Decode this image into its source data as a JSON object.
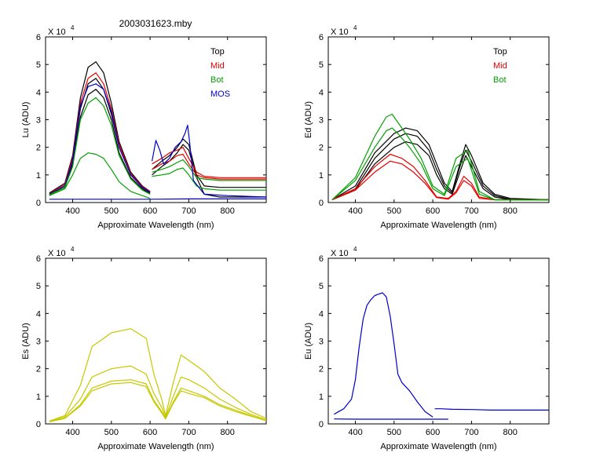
{
  "figure_title": "2003031623.mby",
  "chart_data": [
    {
      "id": "lu",
      "type": "line",
      "ylabel": "Lu (ADU)",
      "xlabel": "Approximate Wavelength (nm)",
      "xlim": [
        330,
        900
      ],
      "ylim": [
        0,
        6
      ],
      "xticks": [
        400,
        500,
        600,
        700,
        800
      ],
      "yticks": [
        0,
        1,
        2,
        3,
        4,
        5,
        6
      ],
      "exponent": "X 10",
      "exponent_power": "4",
      "legend": [
        {
          "name": "Top",
          "color": "#000000"
        },
        {
          "name": "Mid",
          "color": "#e60000"
        },
        {
          "name": "Bot",
          "color": "#00a000"
        },
        {
          "name": "MOS",
          "color": "#0000cc"
        }
      ],
      "series": [
        {
          "color": "#000000",
          "x": [
            340,
            380,
            400,
            420,
            440,
            460,
            480,
            500,
            520,
            550,
            580,
            600
          ],
          "y": [
            0.35,
            0.7,
            1.7,
            3.8,
            4.9,
            5.1,
            4.7,
            3.6,
            2.2,
            1.1,
            0.6,
            0.4
          ]
        },
        {
          "color": "#000000",
          "x": [
            340,
            380,
            400,
            420,
            440,
            460,
            480,
            500,
            520,
            550,
            580,
            600
          ],
          "y": [
            0.3,
            0.6,
            1.5,
            3.4,
            4.3,
            4.5,
            4.1,
            3.2,
            2.0,
            1.0,
            0.55,
            0.35
          ]
        },
        {
          "color": "#000000",
          "x": [
            340,
            380,
            400,
            420,
            440,
            460,
            480,
            500,
            520,
            550,
            580,
            600
          ],
          "y": [
            0.28,
            0.55,
            1.4,
            3.1,
            3.9,
            4.1,
            3.8,
            3.0,
            1.8,
            0.9,
            0.5,
            0.3
          ]
        },
        {
          "color": "#e60000",
          "x": [
            340,
            380,
            400,
            420,
            440,
            460,
            480,
            500,
            520,
            550,
            580,
            600
          ],
          "y": [
            0.32,
            0.65,
            1.6,
            3.6,
            4.5,
            4.7,
            4.3,
            3.4,
            2.1,
            1.05,
            0.58,
            0.4
          ]
        },
        {
          "color": "#0000cc",
          "x": [
            340,
            380,
            400,
            420,
            440,
            460,
            480,
            500,
            520,
            550,
            580,
            600
          ],
          "y": [
            0.3,
            0.6,
            1.5,
            3.5,
            4.2,
            4.3,
            4.1,
            3.3,
            2.0,
            1.0,
            0.55,
            0.38
          ]
        },
        {
          "color": "#00a000",
          "x": [
            340,
            380,
            400,
            420,
            440,
            460,
            480,
            500,
            520,
            550,
            580,
            600
          ],
          "y": [
            0.25,
            0.5,
            1.0,
            1.6,
            1.8,
            1.75,
            1.6,
            1.2,
            0.75,
            0.4,
            0.25,
            0.15
          ]
        },
        {
          "color": "#00a000",
          "x": [
            340,
            380,
            400,
            420,
            440,
            460,
            480,
            500,
            520,
            550,
            580,
            600
          ],
          "y": [
            0.28,
            0.55,
            1.3,
            3.0,
            3.6,
            3.8,
            3.5,
            2.8,
            1.7,
            0.85,
            0.45,
            0.3
          ]
        },
        {
          "color": "#0000cc",
          "x": [
            340,
            500,
            600,
            700,
            800,
            900
          ],
          "y": [
            0.12,
            0.12,
            0.12,
            0.13,
            0.13,
            0.13
          ]
        },
        {
          "color": "#000000",
          "x": [
            605,
            630,
            650,
            670,
            685,
            700,
            720,
            740,
            780,
            900
          ],
          "y": [
            1.2,
            1.5,
            1.7,
            2.0,
            2.3,
            2.1,
            1.0,
            0.6,
            0.55,
            0.55
          ]
        },
        {
          "color": "#000000",
          "x": [
            605,
            630,
            650,
            670,
            685,
            700,
            720,
            740,
            780,
            900
          ],
          "y": [
            1.0,
            1.3,
            1.5,
            1.8,
            2.1,
            1.9,
            0.9,
            0.3,
            0.2,
            0.2
          ]
        },
        {
          "color": "#e60000",
          "x": [
            605,
            630,
            650,
            670,
            685,
            700,
            720,
            740,
            780,
            900
          ],
          "y": [
            1.4,
            1.6,
            1.8,
            1.9,
            2.0,
            1.6,
            1.1,
            0.95,
            0.9,
            0.9
          ]
        },
        {
          "color": "#e60000",
          "x": [
            605,
            630,
            650,
            670,
            685,
            700,
            720,
            740,
            780,
            900
          ],
          "y": [
            1.2,
            1.4,
            1.5,
            1.7,
            1.75,
            1.4,
            1.0,
            0.9,
            0.85,
            0.85
          ]
        },
        {
          "color": "#00a000",
          "x": [
            605,
            630,
            650,
            670,
            685,
            700,
            720,
            740,
            780,
            900
          ],
          "y": [
            1.1,
            1.2,
            1.3,
            1.45,
            1.55,
            1.3,
            0.9,
            0.85,
            0.8,
            0.8
          ]
        },
        {
          "color": "#00a000",
          "x": [
            605,
            630,
            650,
            670,
            685,
            700,
            720,
            740,
            780,
            900
          ],
          "y": [
            0.95,
            1.0,
            1.05,
            1.2,
            1.25,
            1.0,
            0.6,
            0.5,
            0.45,
            0.45
          ]
        },
        {
          "color": "#0000cc",
          "x": [
            605,
            615,
            625,
            635,
            650,
            665,
            680,
            690,
            697,
            702,
            712,
            740,
            800,
            900
          ],
          "y": [
            1.5,
            2.25,
            1.9,
            1.4,
            1.6,
            2.0,
            2.2,
            2.5,
            2.8,
            2.2,
            0.8,
            0.3,
            0.25,
            0.2
          ]
        }
      ]
    },
    {
      "id": "ed",
      "type": "line",
      "ylabel": "Ed  (ADU)",
      "xlabel": "Approximate Wavelength (nm)",
      "xlim": [
        330,
        900
      ],
      "ylim": [
        0,
        6
      ],
      "xticks": [
        400,
        500,
        600,
        700,
        800
      ],
      "yticks": [
        0,
        1,
        2,
        3,
        4,
        5,
        6
      ],
      "exponent": "X 10",
      "exponent_power": "4",
      "legend": [
        {
          "name": "Top",
          "color": "#000000"
        },
        {
          "name": "Mid",
          "color": "#e60000"
        },
        {
          "name": "Bot",
          "color": "#00a000"
        }
      ],
      "series": [
        {
          "color": "#000000",
          "x": [
            340,
            400,
            450,
            500,
            530,
            560,
            590,
            610,
            630,
            650,
            670,
            685,
            700,
            730,
            760,
            800,
            900
          ],
          "y": [
            0.1,
            0.6,
            1.8,
            2.5,
            2.7,
            2.6,
            2.1,
            1.4,
            0.7,
            0.4,
            1.4,
            2.1,
            1.7,
            0.7,
            0.3,
            0.15,
            0.1
          ]
        },
        {
          "color": "#000000",
          "x": [
            340,
            400,
            450,
            500,
            530,
            560,
            590,
            610,
            630,
            650,
            670,
            685,
            700,
            730,
            760,
            800,
            900
          ],
          "y": [
            0.1,
            0.5,
            1.6,
            2.3,
            2.5,
            2.4,
            1.9,
            1.2,
            0.6,
            0.35,
            1.3,
            1.9,
            1.5,
            0.6,
            0.25,
            0.12,
            0.1
          ]
        },
        {
          "color": "#000000",
          "x": [
            340,
            400,
            450,
            500,
            530,
            560,
            590,
            610,
            630,
            650,
            670,
            685,
            700,
            730,
            760,
            800,
            900
          ],
          "y": [
            0.1,
            0.45,
            1.4,
            2.0,
            2.2,
            2.1,
            1.7,
            1.0,
            0.5,
            0.3,
            1.1,
            1.7,
            1.3,
            0.5,
            0.2,
            0.1,
            0.1
          ]
        },
        {
          "color": "#e60000",
          "x": [
            340,
            400,
            450,
            490,
            520,
            550,
            580,
            610,
            640,
            660,
            680,
            700,
            720,
            760,
            900
          ],
          "y": [
            0.1,
            0.5,
            1.3,
            1.75,
            1.6,
            1.3,
            0.8,
            0.2,
            0.15,
            0.4,
            0.95,
            0.7,
            0.2,
            0.1,
            0.1
          ]
        },
        {
          "color": "#e60000",
          "x": [
            340,
            400,
            450,
            490,
            520,
            550,
            580,
            610,
            640,
            660,
            680,
            700,
            720,
            760,
            900
          ],
          "y": [
            0.1,
            0.45,
            1.1,
            1.5,
            1.4,
            1.1,
            0.7,
            0.18,
            0.12,
            0.35,
            0.8,
            0.6,
            0.15,
            0.1,
            0.1
          ]
        },
        {
          "color": "#00a000",
          "x": [
            340,
            400,
            450,
            480,
            495,
            510,
            540,
            570,
            600,
            630,
            660,
            690,
            720,
            760,
            900
          ],
          "y": [
            0.1,
            0.9,
            2.4,
            3.1,
            3.2,
            2.9,
            2.3,
            1.6,
            0.6,
            0.3,
            1.6,
            1.9,
            0.4,
            0.1,
            0.1
          ]
        },
        {
          "color": "#00a000",
          "x": [
            340,
            400,
            450,
            480,
            495,
            510,
            540,
            570,
            600,
            630,
            660,
            690,
            720,
            760,
            900
          ],
          "y": [
            0.1,
            0.8,
            2.0,
            2.6,
            2.7,
            2.5,
            2.0,
            1.4,
            0.5,
            0.25,
            1.3,
            1.6,
            0.3,
            0.1,
            0.1
          ]
        }
      ]
    },
    {
      "id": "es",
      "type": "line",
      "ylabel": "Es  (ADU)",
      "xlabel": "Approximate Wavelength (nm)",
      "xlim": [
        330,
        900
      ],
      "ylim": [
        0,
        6
      ],
      "xticks": [
        400,
        500,
        600,
        700,
        800
      ],
      "yticks": [
        0,
        1,
        2,
        3,
        4,
        5,
        6
      ],
      "exponent": "X 10",
      "exponent_power": "4",
      "series": [
        {
          "color": "#c8c800",
          "x": [
            340,
            380,
            420,
            450,
            500,
            550,
            590,
            610,
            630,
            640,
            660,
            680,
            700,
            740,
            780,
            820,
            860,
            900
          ],
          "y": [
            0.1,
            0.3,
            1.4,
            2.8,
            3.3,
            3.45,
            3.1,
            1.8,
            0.9,
            0.3,
            1.5,
            2.5,
            2.3,
            1.9,
            1.3,
            0.9,
            0.45,
            0.2
          ]
        },
        {
          "color": "#c8c800",
          "x": [
            340,
            380,
            420,
            450,
            500,
            550,
            590,
            610,
            630,
            640,
            660,
            680,
            700,
            740,
            780,
            820,
            860,
            900
          ],
          "y": [
            0.08,
            0.25,
            0.9,
            1.7,
            2.0,
            2.1,
            1.8,
            1.1,
            0.6,
            0.25,
            1.0,
            1.7,
            1.6,
            1.3,
            0.9,
            0.6,
            0.35,
            0.15
          ]
        },
        {
          "color": "#c8c800",
          "x": [
            340,
            380,
            420,
            450,
            500,
            550,
            590,
            610,
            630,
            640,
            660,
            680,
            700,
            740,
            780,
            820,
            860,
            900
          ],
          "y": [
            0.08,
            0.2,
            0.7,
            1.3,
            1.55,
            1.6,
            1.45,
            0.85,
            0.45,
            0.2,
            0.8,
            1.3,
            1.2,
            1.0,
            0.7,
            0.5,
            0.3,
            0.12
          ]
        },
        {
          "color": "#c8c800",
          "x": [
            340,
            380,
            420,
            450,
            500,
            550,
            590,
            610,
            630,
            640,
            660,
            680,
            700,
            740,
            780,
            820,
            860,
            900
          ],
          "y": [
            0.08,
            0.2,
            0.65,
            1.2,
            1.45,
            1.5,
            1.35,
            0.8,
            0.4,
            0.18,
            0.75,
            1.2,
            1.1,
            0.95,
            0.65,
            0.45,
            0.28,
            0.12
          ]
        }
      ]
    },
    {
      "id": "eu",
      "type": "line",
      "ylabel": "Eu  (ADU)",
      "xlabel": "Approximate Wavelength (nm)",
      "xlim": [
        330,
        900
      ],
      "ylim": [
        0,
        6
      ],
      "xticks": [
        400,
        500,
        600,
        700,
        800
      ],
      "yticks": [
        0,
        1,
        2,
        3,
        4,
        5,
        6
      ],
      "exponent": "X 10",
      "exponent_power": "4",
      "series": [
        {
          "color": "#0000cc",
          "x": [
            345,
            370,
            390,
            400,
            410,
            420,
            430,
            440,
            450,
            460,
            470,
            480,
            490,
            500,
            510,
            520,
            540,
            560,
            580,
            600
          ],
          "y": [
            0.35,
            0.55,
            0.9,
            1.6,
            2.8,
            3.8,
            4.3,
            4.5,
            4.65,
            4.7,
            4.75,
            4.6,
            3.9,
            2.9,
            1.8,
            1.5,
            1.2,
            0.8,
            0.45,
            0.25
          ]
        },
        {
          "color": "#0000cc",
          "x": [
            345,
            400,
            500,
            600,
            640
          ],
          "y": [
            0.18,
            0.17,
            0.17,
            0.17,
            0.17
          ]
        },
        {
          "color": "#0000cc",
          "x": [
            605,
            620,
            650,
            700,
            750,
            800,
            850,
            900
          ],
          "y": [
            0.55,
            0.55,
            0.53,
            0.52,
            0.5,
            0.5,
            0.5,
            0.5
          ]
        }
      ]
    }
  ]
}
